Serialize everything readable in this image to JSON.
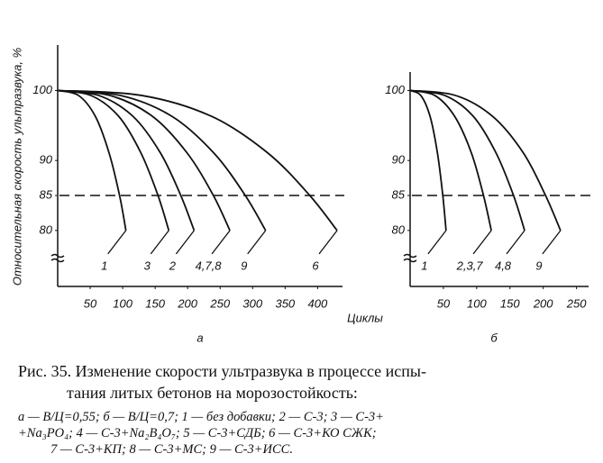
{
  "chart_data": [
    {
      "type": "line",
      "panel_label": "а",
      "ylabel": "Относительная скорость ультразвука, %",
      "xlabel": "Циклы",
      "xlim": [
        0,
        430
      ],
      "ylim": [
        72,
        106.5
      ],
      "xticks": [
        50,
        100,
        150,
        200,
        250,
        300,
        350,
        400
      ],
      "yticks": [
        80,
        85,
        90,
        100
      ],
      "reference_line": 85,
      "series": [
        {
          "name": "1",
          "color": "#111111",
          "x": [
            0,
            32,
            58,
            79,
            95,
            105
          ],
          "values": [
            100,
            99.3,
            96.3,
            91.1,
            85.1,
            80
          ]
        },
        {
          "name": "3",
          "color": "#111111",
          "x": [
            0,
            51,
            94,
            128,
            154,
            171
          ],
          "values": [
            100,
            99.3,
            96.3,
            91.1,
            85.1,
            80
          ]
        },
        {
          "name": "2",
          "color": "#111111",
          "x": [
            0,
            63,
            116,
            158,
            189,
            210
          ],
          "values": [
            100,
            99.3,
            96.3,
            91.1,
            85.1,
            80
          ]
        },
        {
          "name": "4,7,8",
          "color": "#111111",
          "x": [
            0,
            80,
            146,
            199,
            239,
            265
          ],
          "values": [
            100,
            99.3,
            96.3,
            91.1,
            85.1,
            80
          ]
        },
        {
          "name": "9",
          "color": "#111111",
          "x": [
            0,
            96,
            176,
            240,
            288,
            320
          ],
          "values": [
            100,
            99.3,
            96.3,
            91.1,
            85.1,
            80
          ]
        },
        {
          "name": "6",
          "color": "#111111",
          "x": [
            0,
            129,
            237,
            323,
            387,
            430
          ],
          "values": [
            100,
            99.3,
            96.3,
            91.1,
            85.1,
            80
          ]
        }
      ]
    },
    {
      "type": "line",
      "panel_label": "б",
      "xlim": [
        0,
        260
      ],
      "ylim": [
        72,
        106.5
      ],
      "xticks": [
        50,
        100,
        150,
        200,
        250
      ],
      "yticks": [
        80,
        85,
        90,
        100
      ],
      "reference_line": 85,
      "series": [
        {
          "name": "1",
          "color": "#111111",
          "x": [
            0,
            16,
            30,
            41,
            49,
            54
          ],
          "values": [
            100,
            99.3,
            96.3,
            91.1,
            85.1,
            80
          ]
        },
        {
          "name": "2,3,7",
          "color": "#111111",
          "x": [
            0,
            37,
            67,
            92,
            110,
            122
          ],
          "values": [
            100,
            99.3,
            96.3,
            91.1,
            85.1,
            80
          ]
        },
        {
          "name": "4,8",
          "color": "#111111",
          "x": [
            0,
            52,
            95,
            129,
            155,
            172
          ],
          "values": [
            100,
            99.3,
            96.3,
            91.1,
            85.1,
            80
          ]
        },
        {
          "name": "9",
          "color": "#111111",
          "x": [
            0,
            68,
            124,
            170,
            203,
            226
          ],
          "values": [
            100,
            99.3,
            96.3,
            91.1,
            85.1,
            80
          ]
        }
      ]
    }
  ],
  "caption": {
    "lines": [
      "Рис. 35. Изменение скорости ультразвука в процессе испы-",
      "тания литых бетонов на морозостойкость:"
    ],
    "notes": [
      "а — В/Ц=0,55; б — В/Ц=0,7; 1 — без добавки; 2 — С-3; 3 — С-3+",
      "+Na₃PO₄; 4 — С-3+Na₂B₄O₇; 5 — С-3+СДБ; 6 — С-3+КО СЖК;",
      "7 — С-3+КП; 8 — С-3+МС; 9 — С-3+ИСС."
    ]
  }
}
